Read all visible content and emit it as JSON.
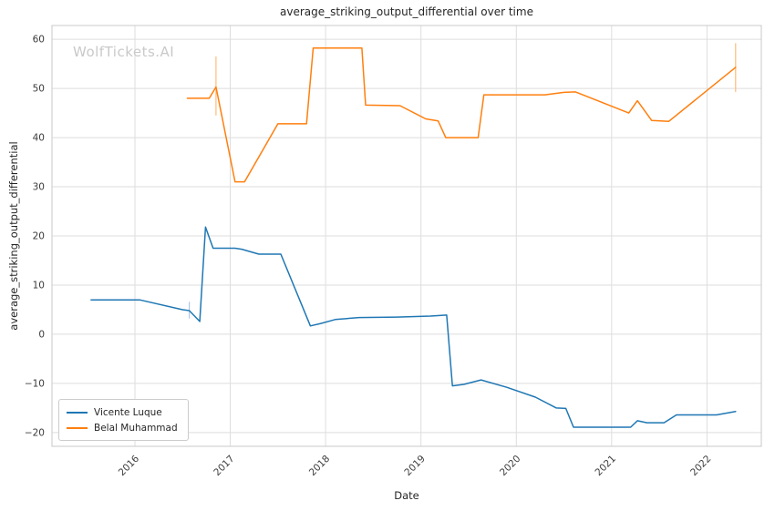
{
  "watermark": "WolfTickets.AI",
  "chart_data": {
    "type": "line",
    "title": "average_striking_output_differential over time",
    "xlabel": "Date",
    "ylabel": "average_striking_output_differential",
    "xlim": [
      2015.13,
      2022.57
    ],
    "ylim": [
      -22.8,
      62.8
    ],
    "xticks": [
      2016,
      2017,
      2018,
      2019,
      2020,
      2021,
      2022
    ],
    "yticks": [
      -20,
      -10,
      0,
      10,
      20,
      30,
      40,
      50,
      60
    ],
    "grid": true,
    "legend_position": "lower left",
    "series": [
      {
        "name": "Vicente Luque",
        "color": "#1f77b4",
        "points": [
          [
            2015.54,
            7.0
          ],
          [
            2016.05,
            7.0
          ],
          [
            2016.5,
            5.0
          ],
          [
            2016.57,
            4.8
          ],
          [
            2016.68,
            2.6
          ],
          [
            2016.74,
            21.8
          ],
          [
            2016.82,
            17.5
          ],
          [
            2017.05,
            17.5
          ],
          [
            2017.12,
            17.3
          ],
          [
            2017.3,
            16.3
          ],
          [
            2017.53,
            16.3
          ],
          [
            2017.84,
            1.7
          ],
          [
            2017.95,
            2.2
          ],
          [
            2018.1,
            3.0
          ],
          [
            2018.35,
            3.4
          ],
          [
            2018.75,
            3.5
          ],
          [
            2019.1,
            3.7
          ],
          [
            2019.27,
            3.9
          ],
          [
            2019.33,
            -10.5
          ],
          [
            2019.45,
            -10.2
          ],
          [
            2019.63,
            -9.3
          ],
          [
            2019.9,
            -10.8
          ],
          [
            2020.2,
            -12.8
          ],
          [
            2020.42,
            -15.0
          ],
          [
            2020.52,
            -15.1
          ],
          [
            2020.6,
            -18.9
          ],
          [
            2021.13,
            -18.9
          ],
          [
            2021.2,
            -18.9
          ],
          [
            2021.27,
            -17.6
          ],
          [
            2021.37,
            -18.0
          ],
          [
            2021.55,
            -18.0
          ],
          [
            2021.68,
            -16.4
          ],
          [
            2022.1,
            -16.4
          ],
          [
            2022.3,
            -15.7
          ]
        ]
      },
      {
        "name": "Belal Muhammad",
        "color": "#ff7f0e",
        "points": [
          [
            2016.55,
            48.0
          ],
          [
            2016.78,
            48.0
          ],
          [
            2016.85,
            50.3
          ],
          [
            2017.05,
            31.0
          ],
          [
            2017.15,
            31.0
          ],
          [
            2017.5,
            42.8
          ],
          [
            2017.8,
            42.8
          ],
          [
            2017.87,
            58.2
          ],
          [
            2018.38,
            58.2
          ],
          [
            2018.42,
            46.6
          ],
          [
            2018.78,
            46.5
          ],
          [
            2019.05,
            43.8
          ],
          [
            2019.18,
            43.4
          ],
          [
            2019.26,
            40.0
          ],
          [
            2019.6,
            40.0
          ],
          [
            2019.66,
            48.7
          ],
          [
            2020.3,
            48.7
          ],
          [
            2020.5,
            49.2
          ],
          [
            2020.62,
            49.3
          ],
          [
            2021.05,
            46.0
          ],
          [
            2021.18,
            45.0
          ],
          [
            2021.27,
            47.5
          ],
          [
            2021.42,
            43.5
          ],
          [
            2021.6,
            43.3
          ],
          [
            2022.3,
            54.3
          ]
        ]
      }
    ],
    "error_bars": [
      {
        "series": "Vicente Luque",
        "x": 2016.57,
        "y_min": 3.2,
        "y_max": 6.6,
        "color": "#aec7e8"
      },
      {
        "series": "Belal Muhammad",
        "x": 2016.85,
        "y_min": 44.5,
        "y_max": 56.5,
        "color": "#ffbb78"
      },
      {
        "series": "Belal Muhammad",
        "x": 2022.3,
        "y_min": 49.3,
        "y_max": 59.2,
        "color": "#ffbb78"
      }
    ]
  }
}
